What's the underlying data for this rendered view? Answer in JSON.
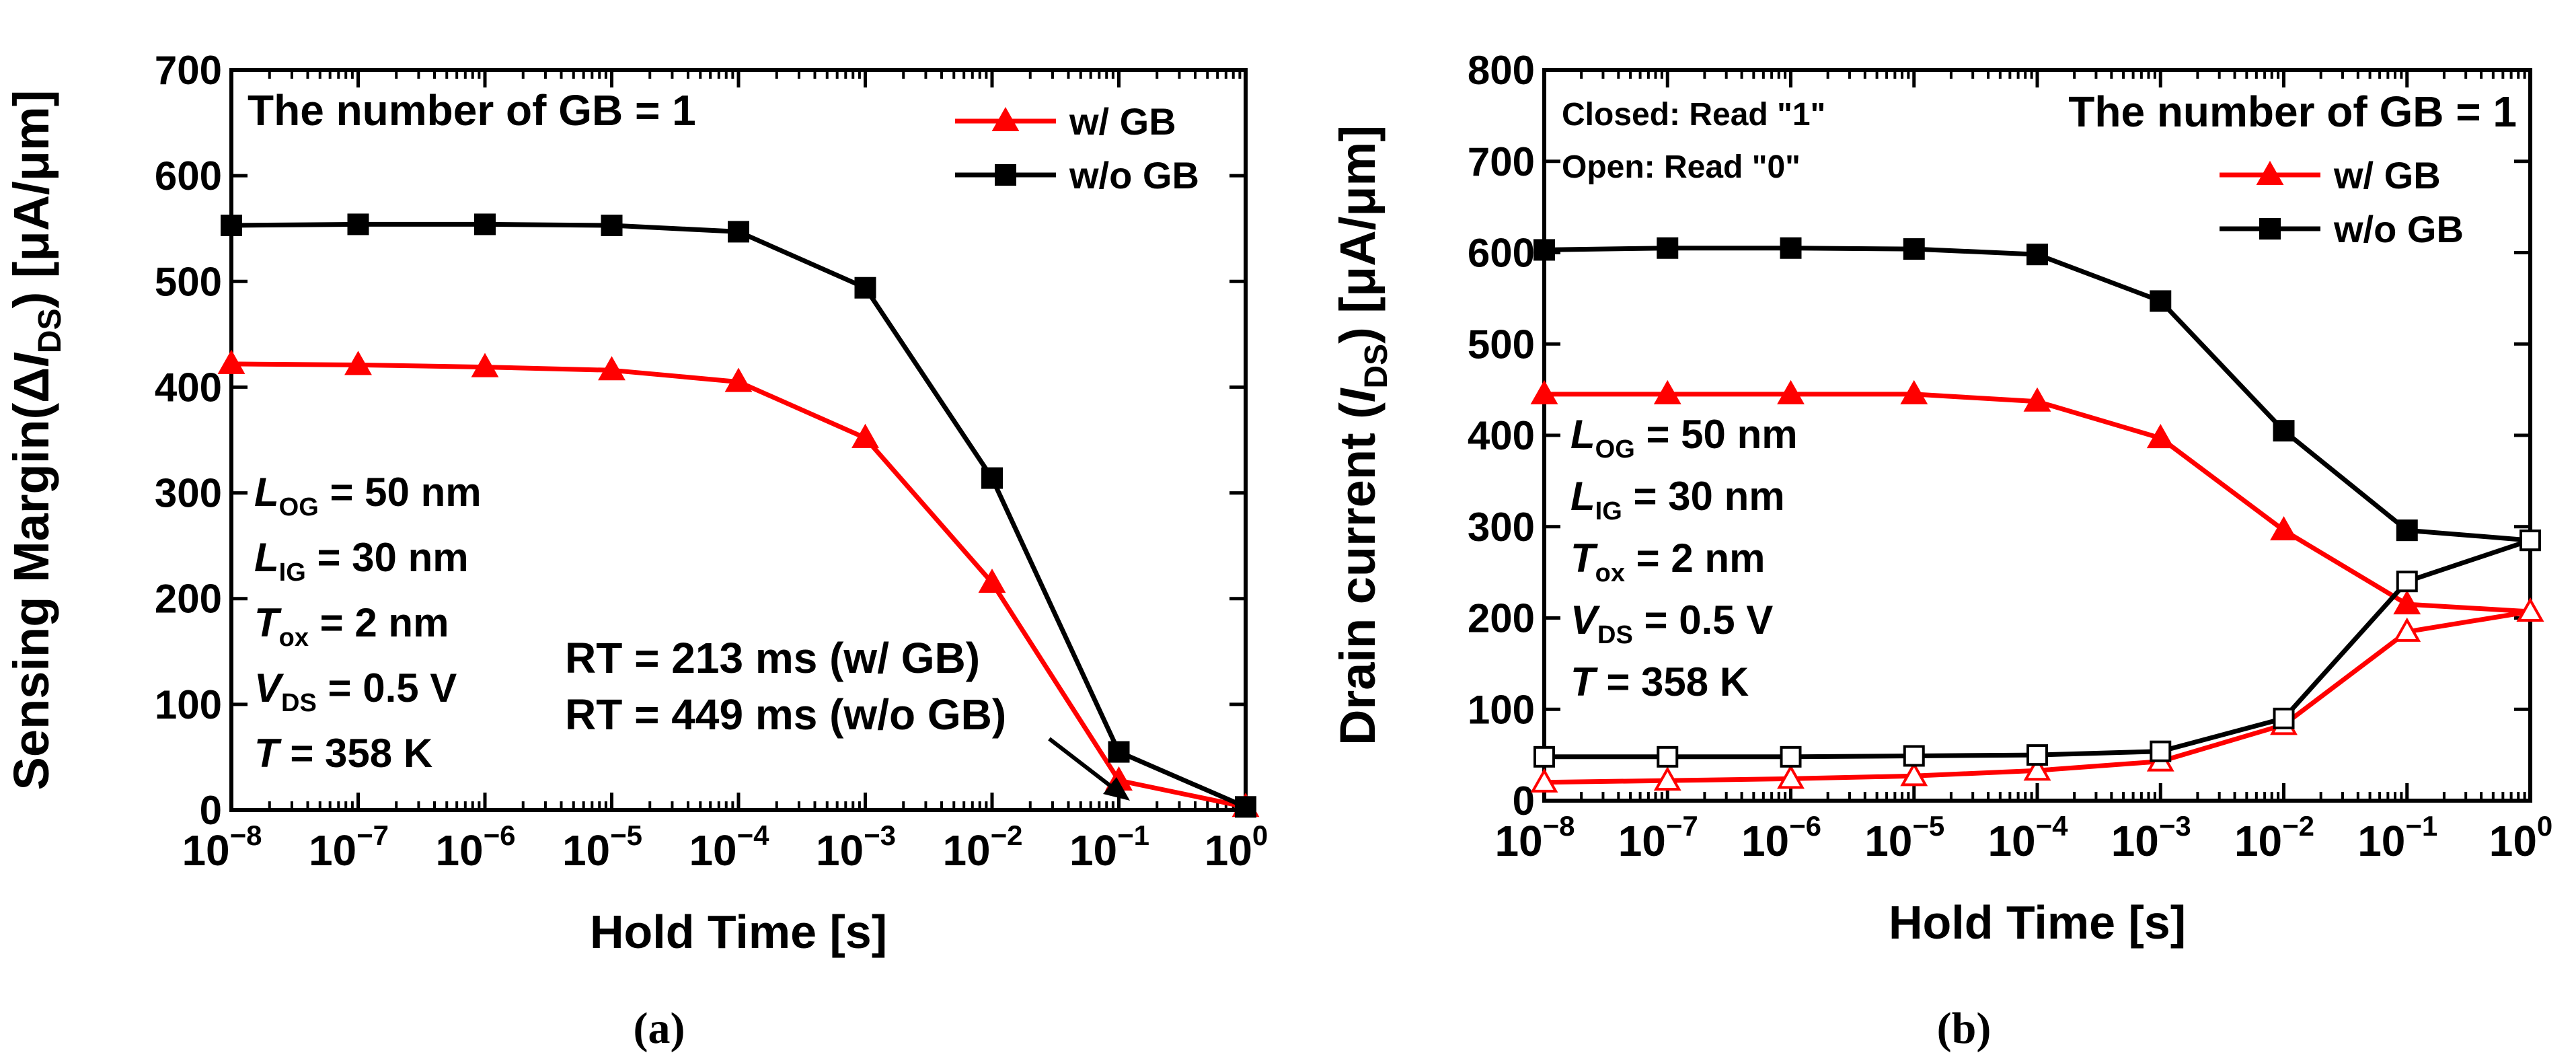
{
  "colors": {
    "red": "#ff0000",
    "black": "#000000"
  },
  "chart_data": [
    {
      "type": "line",
      "caption": "(a)",
      "xscale": "log",
      "x": [
        1e-08,
        1e-07,
        1e-06,
        1e-05,
        0.0001,
        0.001,
        0.01,
        0.1,
        1
      ],
      "xlim": [
        1e-08,
        1
      ],
      "ylim": [
        0,
        700
      ],
      "yticks": [
        0,
        100,
        200,
        300,
        400,
        500,
        600,
        700
      ],
      "xticks": [
        {
          "base": "10",
          "exp": "−8"
        },
        {
          "base": "10",
          "exp": "−7"
        },
        {
          "base": "10",
          "exp": "−6"
        },
        {
          "base": "10",
          "exp": "−5"
        },
        {
          "base": "10",
          "exp": "−4"
        },
        {
          "base": "10",
          "exp": "−3"
        },
        {
          "base": "10",
          "exp": "−2"
        },
        {
          "base": "10",
          "exp": "−1"
        },
        {
          "base": "10",
          "exp": "0"
        }
      ],
      "xlabel": "Hold Time [s]",
      "ylabel": {
        "pre": "Sensing Margin(Δ",
        "var": "I",
        "sub": "DS",
        "post": ") [μA/μm]"
      },
      "title": "The number of GB = 1",
      "legend": {
        "position": "top-right",
        "entries": [
          {
            "label": "w/ GB",
            "color": "#ff0000",
            "marker": "triangle"
          },
          {
            "label": "w/o GB",
            "color": "#000000",
            "marker": "square"
          }
        ]
      },
      "series": [
        {
          "name": "w/ GB",
          "color": "#ff0000",
          "marker": "triangle",
          "filled": true,
          "values": [
            422,
            421,
            419,
            416,
            405,
            352,
            215,
            28,
            3
          ]
        },
        {
          "name": "w/o GB",
          "color": "#000000",
          "marker": "square",
          "filled": true,
          "values": [
            553,
            554,
            554,
            553,
            547,
            494,
            314,
            55,
            3
          ]
        }
      ],
      "params": [
        {
          "var": "L",
          "sub": "OG",
          "rest": " = 50 nm"
        },
        {
          "var": "L",
          "sub": "IG",
          "rest": " = 30 nm"
        },
        {
          "var": "T",
          "sub": "ox",
          "rest": " = 2 nm"
        },
        {
          "var": "V",
          "sub": "DS",
          "rest": " = 0.5 V"
        },
        {
          "var": "T",
          "sub": "",
          "rest": " = 358 K"
        }
      ],
      "annotations": [
        "RT = 213 ms (w/ GB)",
        "RT = 449 ms (w/o GB)"
      ]
    },
    {
      "type": "line",
      "caption": "(b)",
      "xscale": "log",
      "x": [
        1e-08,
        1e-07,
        1e-06,
        1e-05,
        0.0001,
        0.001,
        0.01,
        0.1,
        1
      ],
      "xlim": [
        1e-08,
        1
      ],
      "ylim": [
        0,
        800
      ],
      "yticks": [
        0,
        100,
        200,
        300,
        400,
        500,
        600,
        700,
        800
      ],
      "xticks": [
        {
          "base": "10",
          "exp": "−8"
        },
        {
          "base": "10",
          "exp": "−7"
        },
        {
          "base": "10",
          "exp": "−6"
        },
        {
          "base": "10",
          "exp": "−5"
        },
        {
          "base": "10",
          "exp": "−4"
        },
        {
          "base": "10",
          "exp": "−3"
        },
        {
          "base": "10",
          "exp": "−2"
        },
        {
          "base": "10",
          "exp": "−1"
        },
        {
          "base": "10",
          "exp": "0"
        }
      ],
      "xlabel": "Hold Time [s]",
      "ylabel": {
        "pre": "Drain current (",
        "var": "I",
        "sub": "DS",
        "post": ") [μA/μm]"
      },
      "title": "The number of GB = 1",
      "notes": [
        "Closed: Read \"1\"",
        "Open: Read \"0\""
      ],
      "legend": {
        "position": "right",
        "entries": [
          {
            "label": "w/ GB",
            "color": "#ff0000",
            "marker": "triangle"
          },
          {
            "label": "w/o GB",
            "color": "#000000",
            "marker": "square"
          }
        ]
      },
      "series": [
        {
          "name": "w/ GB (Read \"1\")",
          "color": "#ff0000",
          "marker": "triangle",
          "filled": true,
          "values": [
            445,
            445,
            445,
            445,
            437,
            397,
            296,
            215,
            207
          ]
        },
        {
          "name": "w/o GB (Read \"1\")",
          "color": "#000000",
          "marker": "square",
          "filled": true,
          "values": [
            603,
            605,
            605,
            604,
            598,
            547,
            405,
            296,
            285
          ]
        },
        {
          "name": "w/ GB (Read \"0\")",
          "color": "#ff0000",
          "marker": "triangle",
          "filled": false,
          "values": [
            20,
            22,
            24,
            27,
            33,
            43,
            83,
            185,
            207
          ]
        },
        {
          "name": "w/o GB (Read \"0\")",
          "color": "#000000",
          "marker": "square",
          "filled": false,
          "values": [
            48,
            48,
            48,
            49,
            50,
            54,
            90,
            240,
            285
          ]
        }
      ],
      "params": [
        {
          "var": "L",
          "sub": "OG",
          "rest": " = 50 nm"
        },
        {
          "var": "L",
          "sub": "IG",
          "rest": " = 30 nm"
        },
        {
          "var": "T",
          "sub": "ox",
          "rest": " = 2 nm"
        },
        {
          "var": "V",
          "sub": "DS",
          "rest": " = 0.5 V"
        },
        {
          "var": "T",
          "sub": "",
          "rest": " = 358 K"
        }
      ]
    }
  ]
}
